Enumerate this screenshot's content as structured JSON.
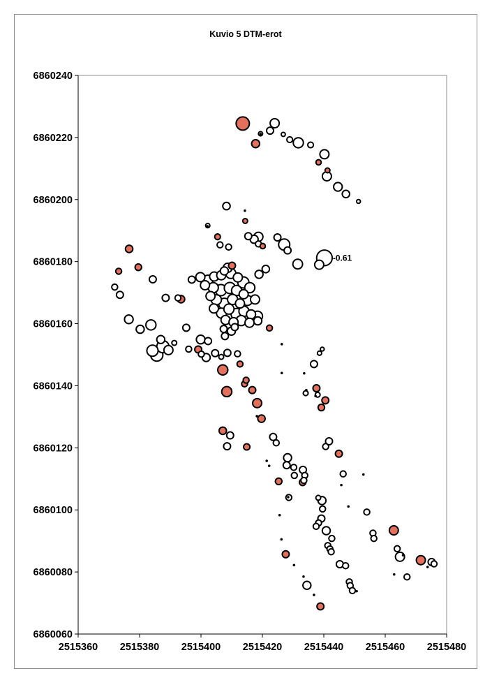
{
  "chart_data": {
    "type": "scatter",
    "title": "Kuvio 5 DTM-erot",
    "xlabel": "",
    "ylabel": "",
    "xlim": [
      2515360,
      2515480
    ],
    "ylim": [
      6860060,
      6860240
    ],
    "x_ticks": [
      "2515360",
      "2515380",
      "2515400",
      "2515420",
      "2515440",
      "2515460",
      "2515480"
    ],
    "y_ticks": [
      "6860240",
      "6860220",
      "6860200",
      "6860180",
      "6860160",
      "6860140",
      "6860120",
      "6860100",
      "6860080",
      "6860060"
    ],
    "grid": false,
    "legend": "none",
    "colors": {
      "positive": "#e2705c",
      "negative": "#ffffff",
      "outline": "#000000",
      "plot_border": "#8c8c8c"
    },
    "annotation": {
      "text": "-0.61",
      "x": 2515440.2,
      "y": 6860181.2
    },
    "series": [
      {
        "name": "",
        "sign": "positive",
        "points": [
          [
            2515413.6,
            6860224.5,
            0.5
          ],
          [
            2515417.8,
            6860218.0,
            0.25
          ],
          [
            2515438.3,
            6860212.0,
            0.12
          ],
          [
            2515441.2,
            6860209.4,
            0.1
          ],
          [
            2515376.6,
            6860184.1,
            0.22
          ],
          [
            2515379.6,
            6860178.2,
            0.18
          ],
          [
            2515373.2,
            6860176.9,
            0.15
          ],
          [
            2515405.4,
            6860188.0,
            0.14
          ],
          [
            2515414.4,
            6860193.1,
            0.1
          ],
          [
            2515420.1,
            6860185.0,
            0.12
          ],
          [
            2515410.1,
            6860178.7,
            0.2
          ],
          [
            2515393.5,
            6860167.9,
            0.22
          ],
          [
            2515399.1,
            6860151.7,
            0.2
          ],
          [
            2515407.1,
            6860145.1,
            0.35
          ],
          [
            2515408.4,
            6860138.1,
            0.35
          ],
          [
            2515412.7,
            6860147.0,
            0.15
          ],
          [
            2515414.2,
            6860140.6,
            0.15
          ],
          [
            2515414.7,
            6860141.8,
            0.15
          ],
          [
            2515416.7,
            6860138.6,
            0.2
          ],
          [
            2515418.3,
            6860134.4,
            0.3
          ],
          [
            2515419.7,
            6860129.4,
            0.22
          ],
          [
            2515407.1,
            6860125.5,
            0.22
          ],
          [
            2515414.9,
            6860120.3,
            0.17
          ],
          [
            2515425.3,
            6860109.2,
            0.18
          ],
          [
            2515433.1,
            6860108.9,
            0.18
          ],
          [
            2515437.6,
            6860139.2,
            0.2
          ],
          [
            2515440.5,
            6860135.3,
            0.2
          ],
          [
            2515439.2,
            6860133.0,
            0.18
          ],
          [
            2515444.9,
            6860118.1,
            0.2
          ],
          [
            2515422.3,
            6860158.6,
            0.15
          ],
          [
            2515427.6,
            6860085.7,
            0.2
          ],
          [
            2515438.9,
            6860068.9,
            0.2
          ],
          [
            2515462.8,
            6860093.4,
            0.3
          ],
          [
            2515471.6,
            6860083.8,
            0.3
          ]
        ]
      },
      {
        "name": "",
        "sign": "negative",
        "points": [
          [
            2515424.0,
            6860224.6,
            0.3
          ],
          [
            2515422.5,
            6860222.2,
            0.2
          ],
          [
            2515419.4,
            6860221.2,
            0.07
          ],
          [
            2515426.8,
            6860221.0,
            0.06
          ],
          [
            2515428.9,
            6860219.3,
            0.14
          ],
          [
            2515431.7,
            6860218.3,
            0.35
          ],
          [
            2515435.7,
            6860217.6,
            0.14
          ],
          [
            2515440.2,
            6860214.6,
            0.3
          ],
          [
            2515441.0,
            6860207.5,
            0.3
          ],
          [
            2515444.6,
            6860204.1,
            0.28
          ],
          [
            2515447.2,
            6860201.8,
            0.22
          ],
          [
            2515451.3,
            6860199.4,
            0.05
          ],
          [
            2515408.3,
            6860197.9,
            0.22
          ],
          [
            2515402.2,
            6860191.6,
            0.07
          ],
          [
            2515415.4,
            6860188.2,
            0.2
          ],
          [
            2515417.3,
            6860187.2,
            0.25
          ],
          [
            2515418.7,
            6860188.0,
            0.3
          ],
          [
            2515424.9,
            6860187.8,
            0.2
          ],
          [
            2515427.1,
            6860185.5,
            0.4
          ],
          [
            2515428.2,
            6860183.6,
            0.2
          ],
          [
            2515406.2,
            6860185.4,
            0.15
          ],
          [
            2515409.0,
            6860184.7,
            0.15
          ],
          [
            2515418.7,
            6860185.7,
            0.15
          ],
          [
            2515440.2,
            6860181.2,
            0.61
          ],
          [
            2515431.5,
            6860179.2,
            0.33
          ],
          [
            2515438.5,
            6860179.0,
            0.3
          ],
          [
            2515421.1,
            6860177.6,
            0.22
          ],
          [
            2515418.9,
            6860175.9,
            0.25
          ],
          [
            2515384.3,
            6860174.3,
            0.2
          ],
          [
            2515371.9,
            6860171.8,
            0.15
          ],
          [
            2515373.6,
            6860169.3,
            0.2
          ],
          [
            2515388.5,
            6860168.3,
            0.2
          ],
          [
            2515392.5,
            6860168.3,
            0.15
          ],
          [
            2515376.5,
            6860161.4,
            0.28
          ],
          [
            2515383.7,
            6860159.6,
            0.35
          ],
          [
            2515380.2,
            6860158.2,
            0.25
          ],
          [
            2515395.2,
            6860158.7,
            0.2
          ],
          [
            2515386.9,
            6860154.9,
            0.25
          ],
          [
            2515399.9,
            6860154.9,
            0.28
          ],
          [
            2515402.3,
            6860154.4,
            0.2
          ],
          [
            2515391.3,
            6860153.8,
            0.1
          ],
          [
            2515384.2,
            6860151.3,
            0.4
          ],
          [
            2515385.6,
            6860149.9,
            0.45
          ],
          [
            2515387.6,
            6860152.6,
            0.45
          ],
          [
            2515389.4,
            6860151.5,
            0.3
          ],
          [
            2515396.0,
            6860151.8,
            0.15
          ],
          [
            2515400.1,
            6860150.2,
            0.15
          ],
          [
            2515401.7,
            6860149.1,
            0.25
          ],
          [
            2515404.6,
            6860150.5,
            0.2
          ],
          [
            2515408.6,
            6860150.6,
            0.2
          ],
          [
            2515411.9,
            6860150.3,
            0.15
          ],
          [
            2515406.6,
            6860149.3,
            0.1
          ],
          [
            2515423.5,
            6860123.5,
            0.2
          ],
          [
            2515424.5,
            6860121.6,
            0.15
          ],
          [
            2515409.5,
            6860124.0,
            0.2
          ],
          [
            2515408.5,
            6860120.5,
            0.2
          ],
          [
            2515428.2,
            6860116.8,
            0.25
          ],
          [
            2515427.9,
            6860114.4,
            0.2
          ],
          [
            2515430.2,
            6860113.7,
            0.15
          ],
          [
            2515433.2,
            6860112.9,
            0.2
          ],
          [
            2515433.8,
            6860111.1,
            0.15
          ],
          [
            2515430.4,
            6860111.1,
            0.15
          ],
          [
            2515433.5,
            6860109.5,
            0.15
          ],
          [
            2515441.7,
            6860122.1,
            0.2
          ],
          [
            2515440.6,
            6860120.4,
            0.15
          ],
          [
            2515446.3,
            6860111.6,
            0.15
          ],
          [
            2515438.2,
            6860103.9,
            0.1
          ],
          [
            2515439.4,
            6860103.0,
            0.25
          ],
          [
            2515428.6,
            6860104.0,
            0.15
          ],
          [
            2515439.6,
            6860100.3,
            0.15
          ],
          [
            2515439.2,
            6860097.2,
            0.2
          ],
          [
            2515438.3,
            6860095.8,
            0.15
          ],
          [
            2515437.5,
            6860094.7,
            0.15
          ],
          [
            2515440.8,
            6860093.3,
            0.25
          ],
          [
            2515442.6,
            6860090.8,
            0.15
          ],
          [
            2515441.3,
            6860088.5,
            0.15
          ],
          [
            2515442.0,
            6860087.4,
            0.15
          ],
          [
            2515442.4,
            6860086.5,
            0.15
          ],
          [
            2515445.2,
            6860082.5,
            0.2
          ],
          [
            2515447.1,
            6860082.0,
            0.15
          ],
          [
            2515454.0,
            6860099.3,
            0.15
          ],
          [
            2515456.0,
            6860092.5,
            0.15
          ],
          [
            2515456.3,
            6860090.8,
            0.15
          ],
          [
            2515464.8,
            6860084.9,
            0.3
          ],
          [
            2515463.9,
            6860087.5,
            0.15
          ],
          [
            2515467.1,
            6860078.4,
            0.15
          ],
          [
            2515475.1,
            6860083.2,
            0.2
          ],
          [
            2515475.9,
            6860082.6,
            0.15
          ],
          [
            2515448.3,
            6860076.8,
            0.15
          ],
          [
            2515448.6,
            6860075.6,
            0.15
          ],
          [
            2515449.3,
            6860074.0,
            0.15
          ],
          [
            2515434.5,
            6860075.7,
            0.25
          ],
          [
            2515439.5,
            6860151.8,
            0.05
          ],
          [
            2515438.6,
            6860150.5,
            0.07
          ],
          [
            2515436.8,
            6860147.0,
            0.2
          ],
          [
            2515434.1,
            6860137.6,
            0.1
          ],
          [
            2515438.0,
            6860137.1,
            0.1
          ],
          [
            2515397.0,
            6860174.2,
            0.2
          ],
          [
            2515399.8,
            6860175.0,
            0.3
          ],
          [
            2515402.2,
            6860174.0,
            0.35
          ],
          [
            2515404.3,
            6860175.2,
            0.3
          ],
          [
            2515406.6,
            6860175.6,
            0.3
          ],
          [
            2515409.7,
            6860176.2,
            0.35
          ],
          [
            2515412.0,
            6860174.9,
            0.3
          ],
          [
            2515413.8,
            6860173.3,
            0.4
          ],
          [
            2515415.9,
            6860171.6,
            0.35
          ],
          [
            2515401.3,
            6860172.4,
            0.3
          ],
          [
            2515404.0,
            6860171.6,
            0.35
          ],
          [
            2515406.5,
            6860170.8,
            0.4
          ],
          [
            2515409.4,
            6860171.5,
            0.4
          ],
          [
            2515411.6,
            6860170.7,
            0.35
          ],
          [
            2515413.9,
            6860169.5,
            0.3
          ],
          [
            2515403.1,
            6860168.9,
            0.3
          ],
          [
            2515405.0,
            6860167.7,
            0.35
          ],
          [
            2515407.6,
            6860166.4,
            0.4
          ],
          [
            2515410.3,
            6860167.8,
            0.35
          ],
          [
            2515412.7,
            6860166.5,
            0.3
          ],
          [
            2515415.1,
            6860167.5,
            0.35
          ],
          [
            2515417.6,
            6860167.8,
            0.3
          ],
          [
            2515404.2,
            6860164.9,
            0.3
          ],
          [
            2515406.7,
            6860163.4,
            0.35
          ],
          [
            2515409.1,
            6860164.7,
            0.35
          ],
          [
            2515411.6,
            6860163.1,
            0.4
          ],
          [
            2515414.0,
            6860164.0,
            0.35
          ],
          [
            2515416.3,
            6860163.0,
            0.3
          ],
          [
            2515418.4,
            6860162.4,
            0.35
          ],
          [
            2515408.0,
            6860161.2,
            0.3
          ],
          [
            2515410.6,
            6860160.5,
            0.3
          ],
          [
            2515413.1,
            6860161.0,
            0.35
          ],
          [
            2515415.8,
            6860160.3,
            0.3
          ],
          [
            2515418.5,
            6860160.9,
            0.25
          ],
          [
            2515409.9,
            6860157.6,
            0.25
          ],
          [
            2515407.4,
            6860158.3,
            0.2
          ],
          [
            2515407.8,
            6860156.0,
            0.2
          ],
          [
            2515411.0,
            6860158.9,
            0.2
          ],
          [
            2515408.7,
            6860178.0,
            0.3
          ],
          [
            2515407.6,
            6860177.0,
            0.25
          ]
        ]
      },
      {
        "name": "",
        "sign": "tiny",
        "points": [
          [
            2515402.1,
            6860191.4,
            0.04
          ],
          [
            2515414.3,
            6860196.4,
            0.04
          ],
          [
            2515419.4,
            6860221.1,
            0.04
          ],
          [
            2515426.3,
            6860153.4,
            0.04
          ],
          [
            2515426.3,
            6860144.1,
            0.04
          ],
          [
            2515433.6,
            6860144.0,
            0.05
          ],
          [
            2515434.3,
            6860138.6,
            0.04
          ],
          [
            2515418.2,
            6860130.2,
            0.03
          ],
          [
            2515421.4,
            6860115.8,
            0.03
          ],
          [
            2515422.2,
            6860114.2,
            0.03
          ],
          [
            2515428.4,
            6860104.1,
            0.04
          ],
          [
            2515425.6,
            6860098.3,
            0.03
          ],
          [
            2515426.2,
            6860090.5,
            0.05
          ],
          [
            2515430.3,
            6860082.2,
            0.05
          ],
          [
            2515433.4,
            6860078.5,
            0.05
          ],
          [
            2515436.8,
            6860072.6,
            0.04
          ],
          [
            2515437.3,
            6860136.7,
            0.03
          ],
          [
            2515445.7,
            6860108.0,
            0.04
          ],
          [
            2515452.9,
            6860111.4,
            0.03
          ],
          [
            2515448.0,
            6860101.1,
            0.04
          ],
          [
            2515450.7,
            6860073.8,
            0.04
          ],
          [
            2515462.9,
            6860079.2,
            0.04
          ],
          [
            2515465.8,
            6860085.4,
            0.04
          ],
          [
            2515473.8,
            6860081.6,
            0.04
          ]
        ]
      }
    ]
  }
}
